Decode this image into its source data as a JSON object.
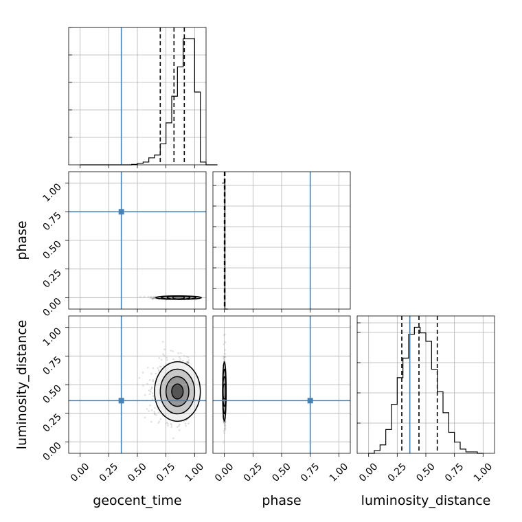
{
  "chart_data": {
    "type": "corner",
    "parameters": [
      "geocent_time",
      "phase",
      "luminosity_distance"
    ],
    "axis_range": [
      -0.1,
      1.1
    ],
    "ticks": [
      "0.00",
      "0.25",
      "0.50",
      "0.75",
      "1.00"
    ],
    "tick_values": [
      0,
      0.25,
      0.5,
      0.75,
      1.0
    ],
    "truths": {
      "geocent_time": 0.36,
      "phase": 0.75,
      "luminosity_distance": 0.36
    },
    "truth_color": "#4682b4",
    "histograms": {
      "geocent_time": {
        "bin_start": 0.0,
        "bin_width": 0.05,
        "counts": [
          0,
          0,
          0,
          0,
          0,
          0,
          0,
          0,
          0,
          0.3,
          1,
          2,
          5,
          7,
          15,
          30,
          49,
          70,
          90,
          90,
          52,
          2,
          0,
          0
        ],
        "quantiles": [
          0.7,
          0.82,
          0.91
        ]
      },
      "phase": {
        "bin_start": -0.02,
        "bin_width": 0.025,
        "counts": [
          100,
          0
        ],
        "quantiles": [
          0.0,
          0.003,
          0.005
        ]
      },
      "luminosity_distance": {
        "bin_start": 0.0,
        "bin_width": 0.05,
        "counts": [
          0,
          2,
          6,
          17,
          35,
          54,
          68,
          85,
          90,
          86,
          80,
          60,
          44,
          29,
          15,
          8,
          3,
          1,
          1,
          0
        ],
        "quantiles": [
          0.29,
          0.44,
          0.6
        ]
      }
    },
    "contours_2d": [
      {
        "x": "geocent_time",
        "y": "phase",
        "center": [
          0.86,
          0.0
        ],
        "spread": [
          0.1,
          0.005
        ]
      },
      {
        "x": "geocent_time",
        "y": "luminosity_distance",
        "center": [
          0.85,
          0.44
        ],
        "spread": [
          0.1,
          0.13
        ]
      },
      {
        "x": "phase",
        "y": "luminosity_distance",
        "center": [
          0.0,
          0.44
        ],
        "spread": [
          0.005,
          0.13
        ]
      }
    ]
  }
}
